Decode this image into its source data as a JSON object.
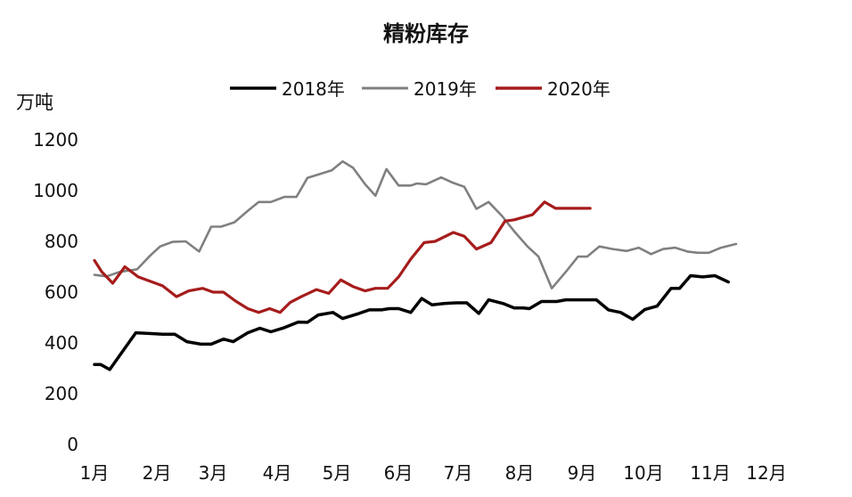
{
  "chart_data": {
    "type": "line",
    "title": "精粉库存",
    "ylabel": "万吨",
    "ylim": [
      0,
      1200
    ],
    "yticks": [
      0,
      200,
      400,
      600,
      800,
      1000,
      1200
    ],
    "ytick_labels": [
      "0",
      "200",
      "400",
      "600",
      "800",
      "1000",
      "1200"
    ],
    "x_months": [
      "1月",
      "2月",
      "3月",
      "4月",
      "5月",
      "6月",
      "7月",
      "8月",
      "9月",
      "10月",
      "11月",
      "12月"
    ],
    "x_unit": "month index (1 = 1月 start, 13 = end of 12月)",
    "grid": false,
    "legend_position": "top",
    "series": [
      {
        "name": "2018年",
        "color": "#000000",
        "points": [
          [
            1.0,
            315
          ],
          [
            1.1,
            315
          ],
          [
            1.25,
            295
          ],
          [
            1.68,
            440
          ],
          [
            2.0,
            436
          ],
          [
            2.12,
            434
          ],
          [
            2.32,
            434
          ],
          [
            2.52,
            405
          ],
          [
            2.75,
            395
          ],
          [
            2.92,
            395
          ],
          [
            3.12,
            415
          ],
          [
            3.28,
            405
          ],
          [
            3.52,
            440
          ],
          [
            3.72,
            458
          ],
          [
            3.9,
            444
          ],
          [
            4.12,
            460
          ],
          [
            4.35,
            482
          ],
          [
            4.5,
            481
          ],
          [
            4.68,
            510
          ],
          [
            4.92,
            520
          ],
          [
            5.08,
            496
          ],
          [
            5.35,
            516
          ],
          [
            5.52,
            530
          ],
          [
            5.72,
            530
          ],
          [
            5.85,
            535
          ],
          [
            6.0,
            535
          ],
          [
            6.2,
            520
          ],
          [
            6.38,
            575
          ],
          [
            6.55,
            550
          ],
          [
            6.75,
            555
          ],
          [
            6.95,
            558
          ],
          [
            7.12,
            558
          ],
          [
            7.32,
            516
          ],
          [
            7.48,
            570
          ],
          [
            7.72,
            555
          ],
          [
            7.9,
            538
          ],
          [
            8.05,
            538
          ],
          [
            8.15,
            535
          ],
          [
            8.35,
            563
          ],
          [
            8.6,
            563
          ],
          [
            8.75,
            570
          ],
          [
            9.0,
            570
          ],
          [
            9.25,
            570
          ],
          [
            9.45,
            530
          ],
          [
            9.65,
            520
          ],
          [
            9.85,
            493
          ],
          [
            10.05,
            532
          ],
          [
            10.25,
            545
          ],
          [
            10.48,
            615
          ],
          [
            10.62,
            615
          ],
          [
            10.8,
            665
          ],
          [
            11.0,
            660
          ],
          [
            11.2,
            665
          ],
          [
            11.42,
            640
          ]
        ]
      },
      {
        "name": "2019年",
        "color": "#808080",
        "points": [
          [
            1.0,
            668
          ],
          [
            1.2,
            662
          ],
          [
            1.42,
            680
          ],
          [
            1.7,
            690
          ],
          [
            1.92,
            745
          ],
          [
            2.08,
            780
          ],
          [
            2.28,
            798
          ],
          [
            2.5,
            800
          ],
          [
            2.72,
            760
          ],
          [
            2.92,
            858
          ],
          [
            3.08,
            858
          ],
          [
            3.3,
            875
          ],
          [
            3.52,
            920
          ],
          [
            3.7,
            955
          ],
          [
            3.9,
            955
          ],
          [
            4.12,
            975
          ],
          [
            4.32,
            975
          ],
          [
            4.5,
            1050
          ],
          [
            4.7,
            1065
          ],
          [
            4.9,
            1080
          ],
          [
            5.08,
            1115
          ],
          [
            5.25,
            1090
          ],
          [
            5.45,
            1025
          ],
          [
            5.62,
            980
          ],
          [
            5.8,
            1085
          ],
          [
            6.0,
            1020
          ],
          [
            6.2,
            1020
          ],
          [
            6.3,
            1028
          ],
          [
            6.45,
            1025
          ],
          [
            6.7,
            1052
          ],
          [
            6.9,
            1030
          ],
          [
            7.08,
            1015
          ],
          [
            7.28,
            928
          ],
          [
            7.48,
            955
          ],
          [
            7.7,
            900
          ],
          [
            7.9,
            840
          ],
          [
            8.12,
            780
          ],
          [
            8.3,
            740
          ],
          [
            8.52,
            615
          ],
          [
            8.75,
            680
          ],
          [
            8.95,
            740
          ],
          [
            9.1,
            740
          ],
          [
            9.3,
            780
          ],
          [
            9.52,
            770
          ],
          [
            9.75,
            762
          ],
          [
            9.95,
            775
          ],
          [
            10.15,
            750
          ],
          [
            10.35,
            770
          ],
          [
            10.55,
            775
          ],
          [
            10.75,
            760
          ],
          [
            10.92,
            755
          ],
          [
            11.1,
            755
          ],
          [
            11.3,
            775
          ],
          [
            11.55,
            790
          ]
        ]
      },
      {
        "name": "2020年",
        "color": "#A61C1C",
        "points": [
          [
            1.0,
            725
          ],
          [
            1.12,
            680
          ],
          [
            1.3,
            635
          ],
          [
            1.5,
            700
          ],
          [
            1.72,
            660
          ],
          [
            1.95,
            640
          ],
          [
            2.12,
            625
          ],
          [
            2.35,
            582
          ],
          [
            2.55,
            605
          ],
          [
            2.78,
            615
          ],
          [
            2.95,
            600
          ],
          [
            3.12,
            600
          ],
          [
            3.32,
            565
          ],
          [
            3.52,
            535
          ],
          [
            3.7,
            520
          ],
          [
            3.88,
            535
          ],
          [
            4.05,
            520
          ],
          [
            4.22,
            560
          ],
          [
            4.4,
            582
          ],
          [
            4.65,
            610
          ],
          [
            4.85,
            595
          ],
          [
            5.05,
            648
          ],
          [
            5.25,
            622
          ],
          [
            5.45,
            605
          ],
          [
            5.62,
            615
          ],
          [
            5.82,
            615
          ],
          [
            6.0,
            660
          ],
          [
            6.2,
            730
          ],
          [
            6.42,
            795
          ],
          [
            6.6,
            800
          ],
          [
            6.9,
            835
          ],
          [
            7.08,
            820
          ],
          [
            7.28,
            770
          ],
          [
            7.52,
            795
          ],
          [
            7.75,
            880
          ],
          [
            7.9,
            885
          ],
          [
            8.2,
            905
          ],
          [
            8.4,
            955
          ],
          [
            8.58,
            930
          ],
          [
            8.82,
            930
          ],
          [
            9.15,
            930
          ]
        ]
      }
    ]
  }
}
